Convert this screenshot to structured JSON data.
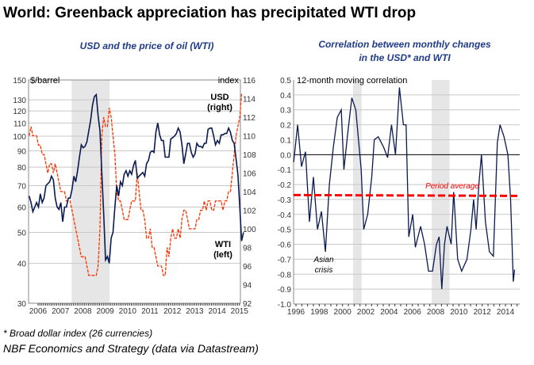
{
  "title": "World: Greenback appreciation has precipitated WTI drop",
  "footnote": "* Broad dollar index (26 currencies)",
  "source": "NBF Economics  and Strategy (data via Datastream)",
  "colors": {
    "wti": "#0b1a4f",
    "usd": "#ff3300",
    "shade": "#e6e6e6",
    "grid": "#c8c8c8",
    "avg": "#ff0000",
    "subtitle": "#1f3c88"
  },
  "chart_data": [
    {
      "type": "line",
      "title": "USD and the price of oil (WTI)",
      "left_axis_label": "$/barrel",
      "right_axis_label": "index",
      "left_scale": "log",
      "ylim_left": [
        30,
        150
      ],
      "yticks_left": [
        30,
        40,
        50,
        60,
        70,
        80,
        90,
        100,
        110,
        120,
        130,
        150
      ],
      "ylim_right": [
        92,
        116
      ],
      "yticks_right": [
        92,
        94,
        96,
        98,
        100,
        102,
        104,
        106,
        108,
        110,
        112,
        114,
        116
      ],
      "xticks": [
        2006,
        2007,
        2008,
        2009,
        2010,
        2011,
        2012,
        2013,
        2014,
        2015
      ],
      "shaded": [
        [
          2007.5,
          2009.2
        ]
      ],
      "annotations": {
        "usd": [
          "USD",
          "(right)"
        ],
        "wti": [
          "WTI",
          "(left)"
        ]
      },
      "series": [
        {
          "name": "WTI (left)",
          "start": 2005.6,
          "step": 0.0833,
          "values": [
            65,
            62,
            58,
            60,
            62,
            60,
            66,
            62,
            64,
            70,
            71,
            72,
            75,
            73,
            64,
            60,
            59,
            62,
            54,
            60,
            60,
            64,
            64,
            68,
            75,
            72,
            78,
            86,
            94,
            92,
            93,
            96,
            104,
            112,
            125,
            133,
            135,
            116,
            104,
            77,
            57,
            41,
            42,
            40,
            48,
            50,
            60,
            70,
            65,
            72,
            70,
            76,
            78,
            75,
            78,
            76,
            81,
            84,
            74,
            75,
            76,
            77,
            75,
            82,
            84,
            89,
            90,
            89,
            103,
            110,
            101,
            97,
            97,
            86,
            86,
            86,
            98,
            99,
            100,
            102,
            106,
            103,
            94,
            82,
            88,
            95,
            95,
            89,
            86,
            88,
            95,
            93,
            93,
            92,
            95,
            95,
            105,
            106,
            106,
            100,
            94,
            97,
            95,
            101,
            101,
            102,
            102,
            106,
            103,
            97,
            95,
            85,
            76,
            60,
            47,
            50
          ]
        },
        {
          "name": "USD (right)",
          "start": 2005.6,
          "step": 0.0833,
          "values": [
            110,
            111,
            110,
            110,
            110,
            109,
            109,
            108,
            108,
            107,
            106,
            107,
            107,
            106,
            107,
            106,
            105,
            104,
            104,
            104,
            103,
            103,
            103,
            102,
            101,
            100,
            99,
            98,
            97,
            97,
            97,
            96,
            95,
            95,
            95,
            95,
            95,
            96,
            100,
            110,
            112,
            111,
            111,
            113,
            112,
            110,
            108,
            104,
            103,
            103,
            102,
            101,
            101,
            101,
            102,
            103,
            103,
            103,
            106,
            104,
            102,
            102,
            101,
            99,
            99,
            100,
            98,
            98,
            97,
            96,
            96,
            96,
            95,
            95,
            98,
            97,
            99,
            100,
            99,
            99,
            100,
            99,
            101,
            102,
            102,
            101,
            100,
            100,
            100,
            100,
            101,
            101,
            102,
            102,
            103,
            102,
            103,
            103,
            102,
            102,
            103,
            103,
            103,
            103,
            102,
            103,
            103,
            104,
            104,
            106,
            108,
            110,
            111,
            112,
            114.5
          ]
        }
      ]
    },
    {
      "type": "line",
      "title": [
        "Correlation between monthly changes",
        "in the USD* and WTI"
      ],
      "ylim": [
        -1.0,
        0.5
      ],
      "yticks": [
        "-1.0",
        "-0.9",
        "-0.8",
        "-0.7",
        "-0.6",
        "-0.5",
        "-0.4",
        "-0.3",
        "-0.2",
        "-0.1",
        "0.0",
        "0.1",
        "0.2",
        "0.3",
        "0.4",
        "0.5"
      ],
      "xticks": [
        1996,
        1998,
        2000,
        2002,
        2004,
        2006,
        2008,
        2010,
        2012,
        2014
      ],
      "shaded": [
        [
          2000.9,
          2001.64
        ],
        [
          2007.67,
          2009.2
        ]
      ],
      "series_label": "12-month moving correlation",
      "average": {
        "label": "Period average",
        "value": -0.26
      },
      "annotation": [
        "Asian",
        "crisis"
      ],
      "x": [
        1995.8,
        1996.14,
        1996.48,
        1996.82,
        1997.16,
        1997.5,
        1997.85,
        1998.19,
        1998.53,
        1998.87,
        1999.21,
        1999.55,
        1999.89,
        2000.12,
        2000.46,
        2000.8,
        2001.14,
        2001.37,
        2001.6,
        2001.82,
        2002.16,
        2002.51,
        2002.73,
        2003.07,
        2003.53,
        2003.87,
        2004.21,
        2004.55,
        2004.89,
        2005.23,
        2005.46,
        2005.69,
        2006.03,
        2006.26,
        2006.71,
        2007.05,
        2007.39,
        2007.73,
        2008.07,
        2008.3,
        2008.53,
        2008.76,
        2008.98,
        2009.33,
        2009.55,
        2009.89,
        2010.23,
        2010.69,
        2011.03,
        2011.26,
        2011.48,
        2011.71,
        2011.94,
        2012.28,
        2012.62,
        2012.96,
        2013.3,
        2013.53,
        2013.87,
        2014.21,
        2014.44,
        2014.67,
        2014.78
      ],
      "y": [
        -0.05,
        0.2,
        -0.08,
        0.02,
        -0.45,
        -0.15,
        -0.5,
        -0.38,
        -0.65,
        -0.2,
        0.05,
        0.25,
        0.3,
        -0.1,
        0.15,
        0.38,
        0.3,
        0.1,
        -0.1,
        -0.5,
        -0.4,
        -0.15,
        0.1,
        0.12,
        0.05,
        -0.02,
        0.2,
        0.0,
        0.45,
        0.2,
        0.2,
        -0.55,
        -0.4,
        -0.62,
        -0.48,
        -0.6,
        -0.78,
        -0.78,
        -0.6,
        -0.55,
        -0.9,
        -0.6,
        -0.48,
        -0.6,
        -0.25,
        -0.7,
        -0.78,
        -0.7,
        -0.5,
        -0.3,
        -0.5,
        -0.2,
        0.0,
        -0.45,
        -0.65,
        -0.68,
        0.08,
        0.2,
        0.12,
        0.0,
        -0.3,
        -0.85,
        -0.77
      ]
    }
  ]
}
